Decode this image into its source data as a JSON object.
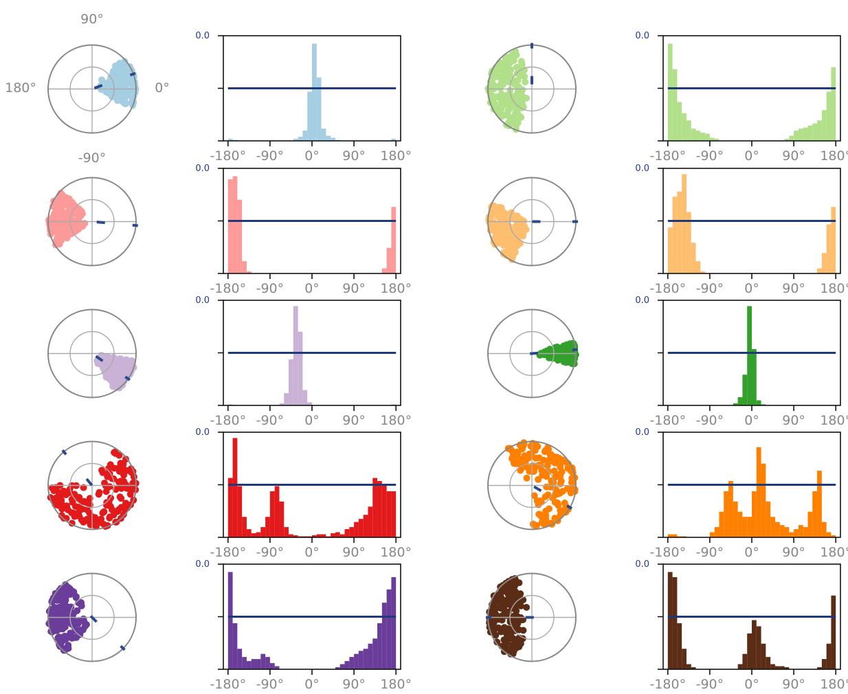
{
  "figure": {
    "compass_labels": {
      "top": "90°",
      "left": "180°",
      "right": "0°",
      "bottom": "-90°"
    },
    "hist_ytick_label": "0.0",
    "hist_xtick_labels": [
      "-180°",
      "-90°",
      "0°",
      "90°",
      "180°"
    ],
    "hist_xticks": [
      -180,
      -90,
      0,
      90,
      180
    ],
    "mean_line_color": "#1f3a7a",
    "ring_color": "#888888",
    "ytick_label_color": "#1f3a8a"
  },
  "chart_data": [
    {
      "type": "polar-scatter",
      "color": "#a6cee3",
      "mean_angle_deg": 20,
      "mean_length": 0.15,
      "points_center_deg": 10,
      "points_spread_deg": 35
    },
    {
      "type": "bar",
      "color": "#a6cee3",
      "xlim": [
        -190,
        190
      ],
      "bin_width_deg": 10,
      "x": [
        -175,
        -165,
        -155,
        -145,
        -135,
        -125,
        -115,
        -105,
        -95,
        -85,
        -75,
        -65,
        -55,
        -45,
        -35,
        -25,
        -15,
        -5,
        5,
        15,
        25,
        35,
        45,
        55,
        65,
        75,
        85,
        95,
        105,
        115,
        125,
        135,
        145,
        155,
        165,
        175
      ],
      "values": [
        0.02,
        0.01,
        0,
        0,
        0,
        0,
        0,
        0,
        0,
        0,
        0,
        0,
        0,
        0,
        0.02,
        0.04,
        0.1,
        0.48,
        0.95,
        0.62,
        0.12,
        0.05,
        0.03,
        0.01,
        0,
        0,
        0,
        0,
        0,
        0,
        0,
        0,
        0,
        0,
        0,
        0.02
      ],
      "mean_level": 0.5,
      "ylabel_tick": "0.0"
    },
    {
      "type": "polar-scatter",
      "color": "#b2df8a",
      "mean_angle_deg": 90,
      "mean_length": 0.2,
      "points_center_deg": 180,
      "points_spread_deg": 70
    },
    {
      "type": "bar",
      "color": "#b2df8a",
      "xlim": [
        -190,
        190
      ],
      "bin_width_deg": 10,
      "x": [
        -175,
        -165,
        -155,
        -145,
        -135,
        -125,
        -115,
        -105,
        -95,
        -85,
        -75,
        -65,
        -55,
        -45,
        -35,
        -25,
        -15,
        -5,
        5,
        15,
        25,
        35,
        45,
        55,
        65,
        75,
        85,
        95,
        105,
        115,
        125,
        135,
        145,
        155,
        165,
        175
      ],
      "values": [
        0.95,
        0.7,
        0.38,
        0.27,
        0.2,
        0.12,
        0.1,
        0.08,
        0.07,
        0.03,
        0.02,
        0,
        0,
        0,
        0,
        0,
        0,
        0,
        0,
        0,
        0,
        0,
        0,
        0,
        0,
        0.02,
        0.05,
        0.1,
        0.12,
        0.13,
        0.15,
        0.17,
        0.2,
        0.3,
        0.48,
        0.72
      ],
      "mean_level": 0.5,
      "ylabel_tick": "0.0"
    },
    {
      "type": "polar-scatter",
      "color": "#fb9a99",
      "mean_angle_deg": -5,
      "mean_length": 0.2,
      "points_center_deg": 175,
      "points_spread_deg": 40
    },
    {
      "type": "bar",
      "color": "#fb9a99",
      "xlim": [
        -190,
        190
      ],
      "bin_width_deg": 10,
      "x": [
        -175,
        -165,
        -155,
        -145,
        -135,
        -125,
        -115,
        -105,
        -95,
        -85,
        -75,
        -65,
        -55,
        -45,
        -35,
        -25,
        -15,
        -5,
        5,
        15,
        25,
        35,
        45,
        55,
        65,
        75,
        85,
        95,
        105,
        115,
        125,
        135,
        145,
        155,
        165,
        175
      ],
      "values": [
        0.92,
        0.95,
        0.72,
        0.12,
        0.02,
        0,
        0,
        0,
        0,
        0,
        0,
        0,
        0,
        0,
        0,
        0,
        0,
        0,
        0,
        0,
        0,
        0,
        0,
        0,
        0,
        0,
        0,
        0,
        0,
        0,
        0,
        0,
        0,
        0.05,
        0.25,
        0.65
      ],
      "mean_level": 0.5,
      "ylabel_tick": "0.0"
    },
    {
      "type": "polar-scatter",
      "color": "#fdbf6f",
      "mean_angle_deg": 0,
      "mean_length": 0.1,
      "points_center_deg": -160,
      "points_spread_deg": 45
    },
    {
      "type": "bar",
      "color": "#fdbf6f",
      "xlim": [
        -190,
        190
      ],
      "bin_width_deg": 10,
      "x": [
        -175,
        -165,
        -155,
        -145,
        -135,
        -125,
        -115,
        -105,
        -95,
        -85,
        -75,
        -65,
        -55,
        -45,
        -35,
        -25,
        -15,
        -5,
        5,
        15,
        25,
        35,
        45,
        55,
        65,
        75,
        85,
        95,
        105,
        115,
        125,
        135,
        145,
        155,
        165,
        175
      ],
      "values": [
        0.45,
        0.75,
        0.8,
        0.97,
        0.6,
        0.3,
        0.12,
        0.02,
        0,
        0,
        0,
        0,
        0,
        0,
        0,
        0,
        0,
        0,
        0,
        0,
        0,
        0,
        0,
        0,
        0,
        0,
        0,
        0,
        0,
        0,
        0,
        0,
        0.05,
        0.2,
        0.48,
        0.65
      ],
      "mean_level": 0.5,
      "ylabel_tick": "0.0"
    },
    {
      "type": "polar-scatter",
      "color": "#cab2d6",
      "mean_angle_deg": -35,
      "mean_length": 0.2,
      "points_center_deg": -35,
      "points_spread_deg": 25
    },
    {
      "type": "bar",
      "color": "#cab2d6",
      "xlim": [
        -190,
        190
      ],
      "bin_width_deg": 10,
      "x": [
        -175,
        -165,
        -155,
        -145,
        -135,
        -125,
        -115,
        -105,
        -95,
        -85,
        -75,
        -65,
        -55,
        -45,
        -35,
        -25,
        -15,
        -5,
        5,
        15,
        25,
        35,
        45,
        55,
        65,
        75,
        85,
        95,
        105,
        115,
        125,
        135,
        145,
        155,
        165,
        175
      ],
      "values": [
        0.01,
        0,
        0,
        0,
        0,
        0,
        0,
        0,
        0,
        0,
        0,
        0.02,
        0.12,
        0.45,
        0.97,
        0.72,
        0.15,
        0.03,
        0,
        0,
        0,
        0,
        0,
        0,
        0,
        0,
        0,
        0,
        0,
        0,
        0,
        0,
        0,
        0,
        0,
        0.01
      ],
      "mean_level": 0.5,
      "ylabel_tick": "0.0"
    },
    {
      "type": "polar-scatter",
      "color": "#33a02c",
      "mean_angle_deg": 5,
      "mean_length": 0.05,
      "points_center_deg": 0,
      "points_spread_deg": 15
    },
    {
      "type": "bar",
      "color": "#33a02c",
      "xlim": [
        -190,
        190
      ],
      "bin_width_deg": 10,
      "x": [
        -175,
        -165,
        -155,
        -145,
        -135,
        -125,
        -115,
        -105,
        -95,
        -85,
        -75,
        -65,
        -55,
        -45,
        -35,
        -25,
        -15,
        -5,
        5,
        15,
        25,
        35,
        45,
        55,
        65,
        75,
        85,
        95,
        105,
        115,
        125,
        135,
        145,
        155,
        165,
        175
      ],
      "values": [
        0,
        0,
        0,
        0,
        0,
        0,
        0,
        0,
        0,
        0,
        0,
        0,
        0,
        0,
        0.02,
        0.08,
        0.3,
        0.97,
        0.55,
        0.05,
        0.01,
        0,
        0,
        0,
        0,
        0,
        0,
        0,
        0,
        0,
        0,
        0,
        0,
        0,
        0,
        0
      ],
      "mean_level": 0.5,
      "ylabel_tick": "0.0"
    },
    {
      "type": "polar-scatter",
      "color": "#e31a1c",
      "mean_angle_deg": 130,
      "mean_length": 0.1,
      "points_center_deg": -60,
      "points_spread_deg": 120
    },
    {
      "type": "bar",
      "color": "#e31a1c",
      "xlim": [
        -190,
        190
      ],
      "bin_width_deg": 10,
      "x": [
        -175,
        -165,
        -155,
        -145,
        -135,
        -125,
        -115,
        -105,
        -95,
        -85,
        -75,
        -65,
        -55,
        -45,
        -35,
        -25,
        -15,
        -5,
        5,
        15,
        25,
        35,
        45,
        55,
        65,
        75,
        85,
        95,
        105,
        115,
        125,
        135,
        145,
        155,
        165,
        175
      ],
      "values": [
        0.58,
        0.97,
        0.5,
        0.2,
        0.08,
        0.04,
        0.05,
        0.1,
        0.2,
        0.45,
        0.5,
        0.35,
        0.1,
        0.03,
        0.02,
        0.01,
        0.01,
        0.01,
        0.02,
        0.03,
        0.03,
        0.01,
        0.04,
        0.05,
        0.03,
        0.08,
        0.1,
        0.15,
        0.18,
        0.22,
        0.3,
        0.58,
        0.55,
        0.52,
        0.45,
        0.45
      ],
      "mean_level": 0.5,
      "ylabel_tick": "0.0"
    },
    {
      "type": "polar-scatter",
      "color": "#ff7f00",
      "mean_angle_deg": -30,
      "mean_length": 0.15,
      "points_center_deg": 20,
      "points_spread_deg": 110
    },
    {
      "type": "bar",
      "color": "#ff7f00",
      "xlim": [
        -190,
        190
      ],
      "bin_width_deg": 10,
      "x": [
        -175,
        -165,
        -155,
        -145,
        -135,
        -125,
        -115,
        -105,
        -95,
        -85,
        -75,
        -65,
        -55,
        -45,
        -35,
        -25,
        -15,
        -5,
        5,
        15,
        25,
        35,
        45,
        55,
        65,
        75,
        85,
        95,
        105,
        115,
        125,
        135,
        145,
        155,
        165,
        175
      ],
      "values": [
        0.03,
        0.03,
        0.01,
        0.01,
        0,
        0,
        0,
        0,
        0,
        0.05,
        0.1,
        0.25,
        0.45,
        0.55,
        0.35,
        0.25,
        0.2,
        0.2,
        0.45,
        0.88,
        0.72,
        0.35,
        0.2,
        0.15,
        0.12,
        0.1,
        0.05,
        0.08,
        0.12,
        0.1,
        0.25,
        0.45,
        0.65,
        0.15,
        0.05,
        0.02
      ],
      "mean_level": 0.5,
      "ylabel_tick": "0.0"
    },
    {
      "type": "polar-scatter",
      "color": "#6a3d9a",
      "mean_angle_deg": -45,
      "mean_length": 0.05,
      "points_center_deg": 180,
      "points_spread_deg": 55
    },
    {
      "type": "bar",
      "color": "#6a3d9a",
      "xlim": [
        -190,
        190
      ],
      "bin_width_deg": 10,
      "x": [
        -175,
        -165,
        -155,
        -145,
        -135,
        -125,
        -115,
        -105,
        -95,
        -85,
        -75,
        -65,
        -55,
        -45,
        -35,
        -25,
        -15,
        -5,
        5,
        15,
        25,
        35,
        45,
        55,
        65,
        75,
        85,
        95,
        105,
        115,
        125,
        135,
        145,
        155,
        165,
        175
      ],
      "values": [
        0.95,
        0.45,
        0.2,
        0.12,
        0.08,
        0.1,
        0.1,
        0.15,
        0.12,
        0.06,
        0.03,
        0,
        0,
        0,
        0,
        0,
        0,
        0,
        0,
        0,
        0,
        0,
        0,
        0.02,
        0.05,
        0.08,
        0.12,
        0.15,
        0.18,
        0.2,
        0.25,
        0.3,
        0.45,
        0.65,
        0.78,
        0.9
      ],
      "mean_level": 0.5,
      "ylabel_tick": "0.0"
    },
    {
      "type": "polar-scatter",
      "color": "#5b2d16",
      "mean_angle_deg": 180,
      "mean_length": 0.05,
      "points_center_deg": 180,
      "points_spread_deg": 70
    },
    {
      "type": "bar",
      "color": "#5b2d16",
      "xlim": [
        -190,
        190
      ],
      "bin_width_deg": 10,
      "x": [
        -175,
        -165,
        -155,
        -145,
        -135,
        -125,
        -115,
        -105,
        -95,
        -85,
        -75,
        -65,
        -55,
        -45,
        -35,
        -25,
        -15,
        -5,
        5,
        15,
        25,
        35,
        45,
        55,
        65,
        75,
        85,
        95,
        105,
        115,
        125,
        135,
        145,
        155,
        165,
        175
      ],
      "values": [
        0.95,
        0.9,
        0.45,
        0.2,
        0.05,
        0.02,
        0,
        0,
        0,
        0,
        0,
        0,
        0,
        0,
        0,
        0.05,
        0.15,
        0.35,
        0.48,
        0.42,
        0.25,
        0.12,
        0.05,
        0.03,
        0.03,
        0.02,
        0,
        0,
        0,
        0,
        0,
        0,
        0.02,
        0.1,
        0.25,
        0.72
      ],
      "mean_level": 0.5,
      "ylabel_tick": "0.0"
    }
  ]
}
